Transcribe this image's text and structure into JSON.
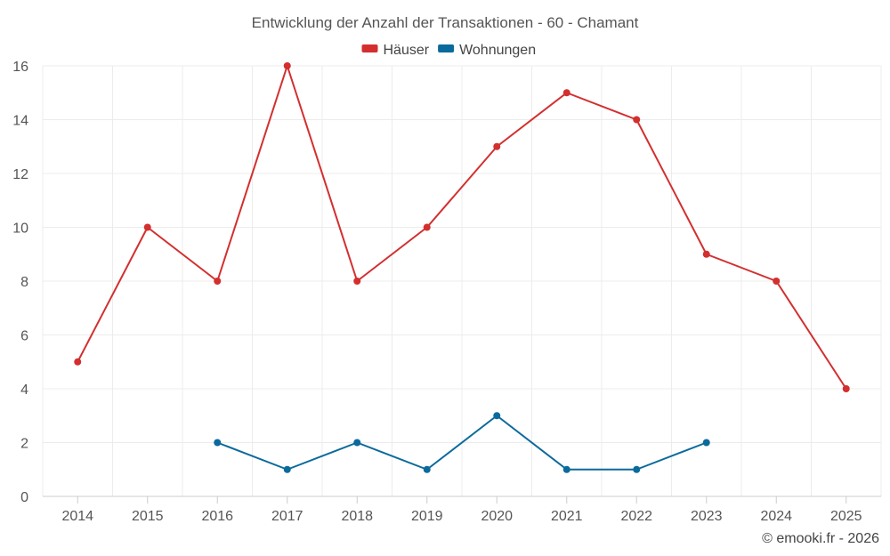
{
  "chart_data": {
    "type": "line",
    "title": "Entwicklung der Anzahl der Transaktionen - 60 - Chamant",
    "xlabel": "",
    "ylabel": "",
    "categories": [
      "2014",
      "2015",
      "2016",
      "2017",
      "2018",
      "2019",
      "2020",
      "2021",
      "2022",
      "2023",
      "2024",
      "2025"
    ],
    "ylim": [
      0,
      16
    ],
    "yticks": [
      0,
      2,
      4,
      6,
      8,
      10,
      12,
      14,
      16
    ],
    "grid": true,
    "legend_position": "top-center",
    "series": [
      {
        "name": "Häuser",
        "color": "#d32f2f",
        "values": [
          5,
          10,
          8,
          16,
          8,
          10,
          13,
          15,
          14,
          9,
          8,
          4
        ]
      },
      {
        "name": "Wohnungen",
        "color": "#0b6a9c",
        "values": [
          null,
          null,
          2,
          1,
          2,
          1,
          3,
          1,
          1,
          2,
          null,
          null
        ]
      }
    ]
  },
  "credit": "© emooki.fr - 2026"
}
